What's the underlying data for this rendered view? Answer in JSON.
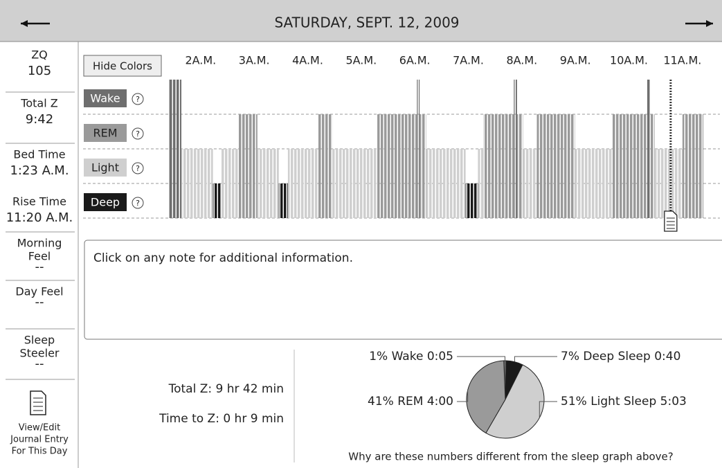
{
  "header": {
    "date": "SATURDAY, SEPT. 12, 2009"
  },
  "sidebar": [
    {
      "label": [
        "ZQ"
      ],
      "value": "105"
    },
    {
      "label": [
        "Total Z"
      ],
      "value": "9:42"
    },
    {
      "label": [
        "Bed Time"
      ],
      "value": "1:23 A.M."
    },
    {
      "label": [
        "Rise Time"
      ],
      "value": "11:20 A.M."
    },
    {
      "label": [
        "Morning",
        "Feel"
      ],
      "value": "--"
    },
    {
      "label": [
        "Day Feel"
      ],
      "value": "--"
    },
    {
      "label": [
        "Sleep",
        "Steeler"
      ],
      "value": "--"
    }
  ],
  "journal_link": [
    "View/Edit",
    "Journal Entry",
    "For This Day"
  ],
  "hide_colors_button": "Hide Colors",
  "sleep_graph": {
    "xlim": [
      1.42,
      11.7
    ],
    "xticks": [
      {
        "value": 2,
        "label": "2A.M."
      },
      {
        "value": 3,
        "label": "3A.M."
      },
      {
        "value": 4,
        "label": "4A.M."
      },
      {
        "value": 5,
        "label": "5A.M."
      },
      {
        "value": 6,
        "label": "6A.M."
      },
      {
        "value": 7,
        "label": "7A.M."
      },
      {
        "value": 8,
        "label": "8A.M."
      },
      {
        "value": 9,
        "label": "9A.M."
      },
      {
        "value": 10,
        "label": "10A.M."
      },
      {
        "value": 11,
        "label": "11A.M."
      }
    ],
    "stages": [
      {
        "name": "Wake",
        "color": "#6e6e6e"
      },
      {
        "name": "REM",
        "color": "#9a9a9a"
      },
      {
        "name": "Light",
        "color": "#cfcfcf"
      },
      {
        "name": "Deep",
        "color": "#1a1a1a"
      }
    ],
    "segments": [
      {
        "stage": "Wake",
        "start": 1.42,
        "end": 1.64
      },
      {
        "stage": "Light",
        "start": 1.64,
        "end": 2.23
      },
      {
        "stage": "Deep",
        "start": 2.23,
        "end": 2.39
      },
      {
        "stage": "Light",
        "start": 2.39,
        "end": 2.71
      },
      {
        "stage": "REM",
        "start": 2.71,
        "end": 3.06
      },
      {
        "stage": "Light",
        "start": 3.06,
        "end": 3.46
      },
      {
        "stage": "Deep",
        "start": 3.46,
        "end": 3.63
      },
      {
        "stage": "Light",
        "start": 3.63,
        "end": 4.2
      },
      {
        "stage": "REM",
        "start": 4.2,
        "end": 4.46
      },
      {
        "stage": "Light",
        "start": 4.46,
        "end": 5.3
      },
      {
        "stage": "REM",
        "start": 5.3,
        "end": 6.04
      },
      {
        "stage": "Wake",
        "start": 6.04,
        "end": 6.09
      },
      {
        "stage": "REM",
        "start": 6.09,
        "end": 6.21
      },
      {
        "stage": "Light",
        "start": 6.21,
        "end": 6.95
      },
      {
        "stage": "Deep",
        "start": 6.95,
        "end": 7.18
      },
      {
        "stage": "Light",
        "start": 7.18,
        "end": 7.28
      },
      {
        "stage": "REM",
        "start": 7.28,
        "end": 7.85
      },
      {
        "stage": "Wake",
        "start": 7.85,
        "end": 7.91
      },
      {
        "stage": "REM",
        "start": 7.91,
        "end": 8.02
      },
      {
        "stage": "Light",
        "start": 8.02,
        "end": 8.28
      },
      {
        "stage": "REM",
        "start": 8.28,
        "end": 8.99
      },
      {
        "stage": "Light",
        "start": 8.99,
        "end": 9.68
      },
      {
        "stage": "REM",
        "start": 9.68,
        "end": 10.33
      },
      {
        "stage": "Wake",
        "start": 10.33,
        "end": 10.39
      },
      {
        "stage": "REM",
        "start": 10.39,
        "end": 10.48
      },
      {
        "stage": "Light",
        "start": 10.48,
        "end": 11.0
      },
      {
        "stage": "REM",
        "start": 11.0,
        "end": 11.39
      }
    ],
    "note_time": 10.78
  },
  "notes_hint": "Click on any note for additional information.",
  "summary": [
    "Total Z: 9 hr 42 min",
    "Time to Z: 0 hr 9 min"
  ],
  "chart_data": {
    "type": "pie",
    "categories": [
      "Wake",
      "Deep Sleep",
      "Light Sleep",
      "REM"
    ],
    "values": [
      1,
      7,
      51,
      41
    ],
    "value_labels": [
      "1% Wake 0:05",
      "7% Deep Sleep 0:40",
      "51% Light Sleep 5:03",
      "41% REM 4:00"
    ],
    "colors": [
      "#6e6e6e",
      "#1a1a1a",
      "#cfcfcf",
      "#9a9a9a"
    ]
  },
  "pie_question": "Why are these numbers different from the sleep graph above?"
}
